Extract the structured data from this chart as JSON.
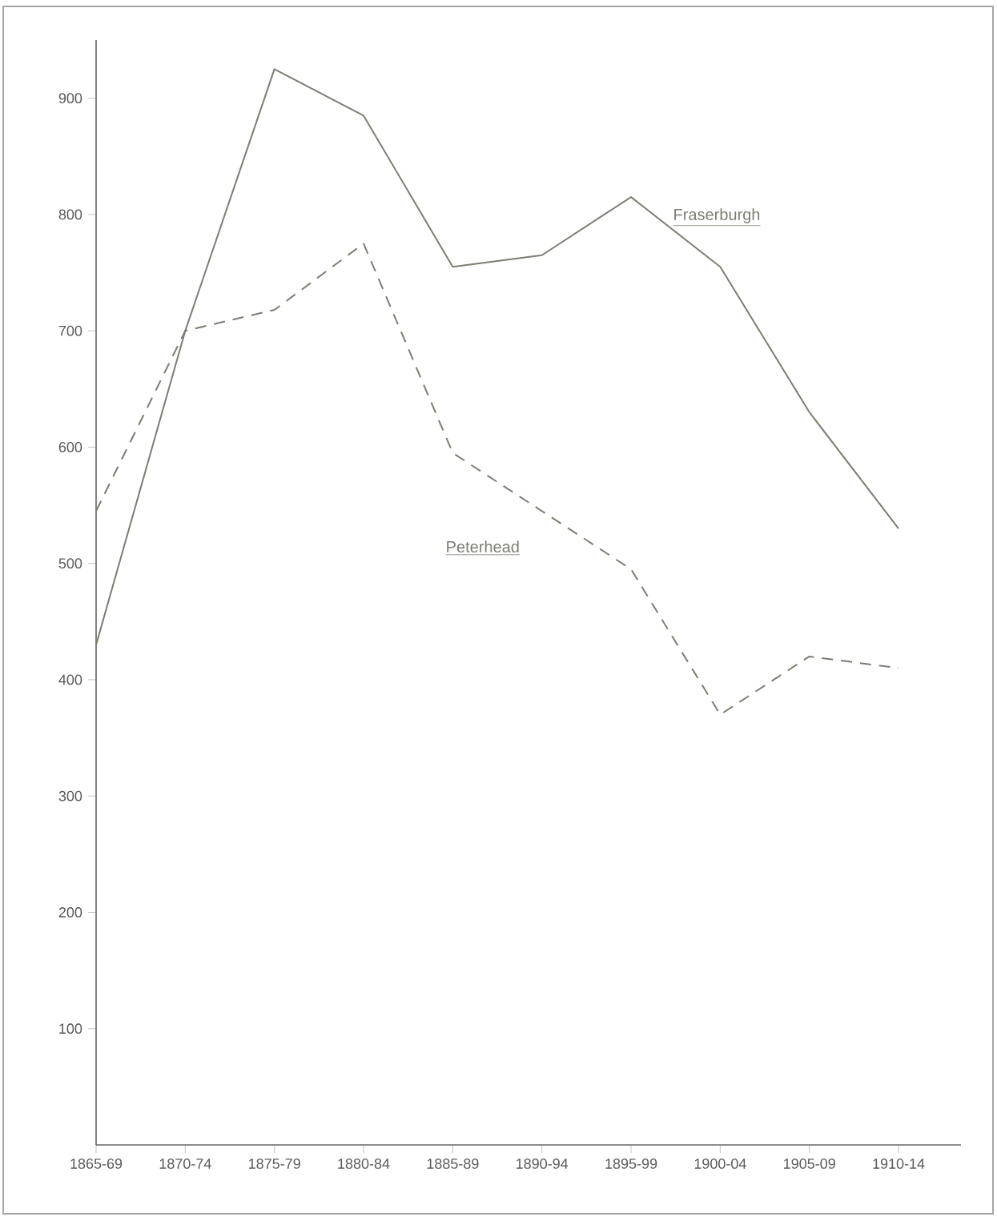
{
  "chart_data": {
    "type": "line",
    "categories": [
      "1865-69",
      "1870-74",
      "1875-79",
      "1880-84",
      "1885-89",
      "1890-94",
      "1895-99",
      "1900-04",
      "1905-09",
      "1910-14"
    ],
    "series": [
      {
        "name": "Fraserburgh",
        "color": "#7d7d72",
        "line_style": "solid",
        "values": [
          430,
          700,
          925,
          885,
          755,
          765,
          815,
          755,
          630,
          530
        ]
      },
      {
        "name": "Peterhead",
        "color": "#7d7d72",
        "line_style": "dashed",
        "values": [
          545,
          700,
          718,
          775,
          595,
          545,
          495,
          370,
          420,
          410
        ]
      }
    ],
    "ylim": [
      0,
      950
    ],
    "yticks": [
      100,
      200,
      300,
      400,
      500,
      600,
      700,
      800,
      900
    ],
    "grid": false,
    "marker": "none"
  }
}
